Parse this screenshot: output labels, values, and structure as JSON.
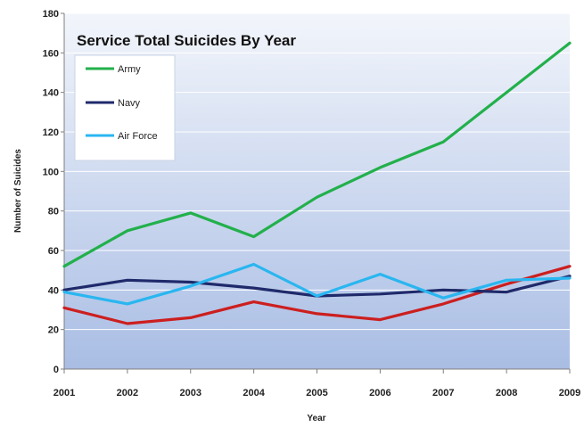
{
  "chart_data": {
    "type": "line",
    "title": "Service Total Suicides By Year",
    "xlabel": "Year",
    "ylabel": "Number of Suicides",
    "x": [
      2001,
      2002,
      2003,
      2004,
      2005,
      2006,
      2007,
      2008,
      2009
    ],
    "ylim": [
      0,
      180
    ],
    "y_ticks": [
      0,
      20,
      40,
      60,
      80,
      100,
      120,
      140,
      160,
      180
    ],
    "grid": true,
    "legend_position": "top-left",
    "series": [
      {
        "name": "Army",
        "color": "#22b04b",
        "values": [
          52,
          70,
          79,
          67,
          87,
          102,
          115,
          140,
          165
        ]
      },
      {
        "name": "Navy",
        "color": "#1f2a6b",
        "values": [
          40,
          45,
          44,
          41,
          37,
          38,
          40,
          39,
          47
        ]
      },
      {
        "name": "Air Force",
        "color": "#29b6f0",
        "values": [
          39,
          33,
          42,
          53,
          37,
          48,
          36,
          45,
          46
        ]
      },
      {
        "name": "",
        "color": "#cc1f1f",
        "values": [
          31,
          23,
          26,
          34,
          28,
          25,
          33,
          43,
          52
        ]
      }
    ]
  }
}
